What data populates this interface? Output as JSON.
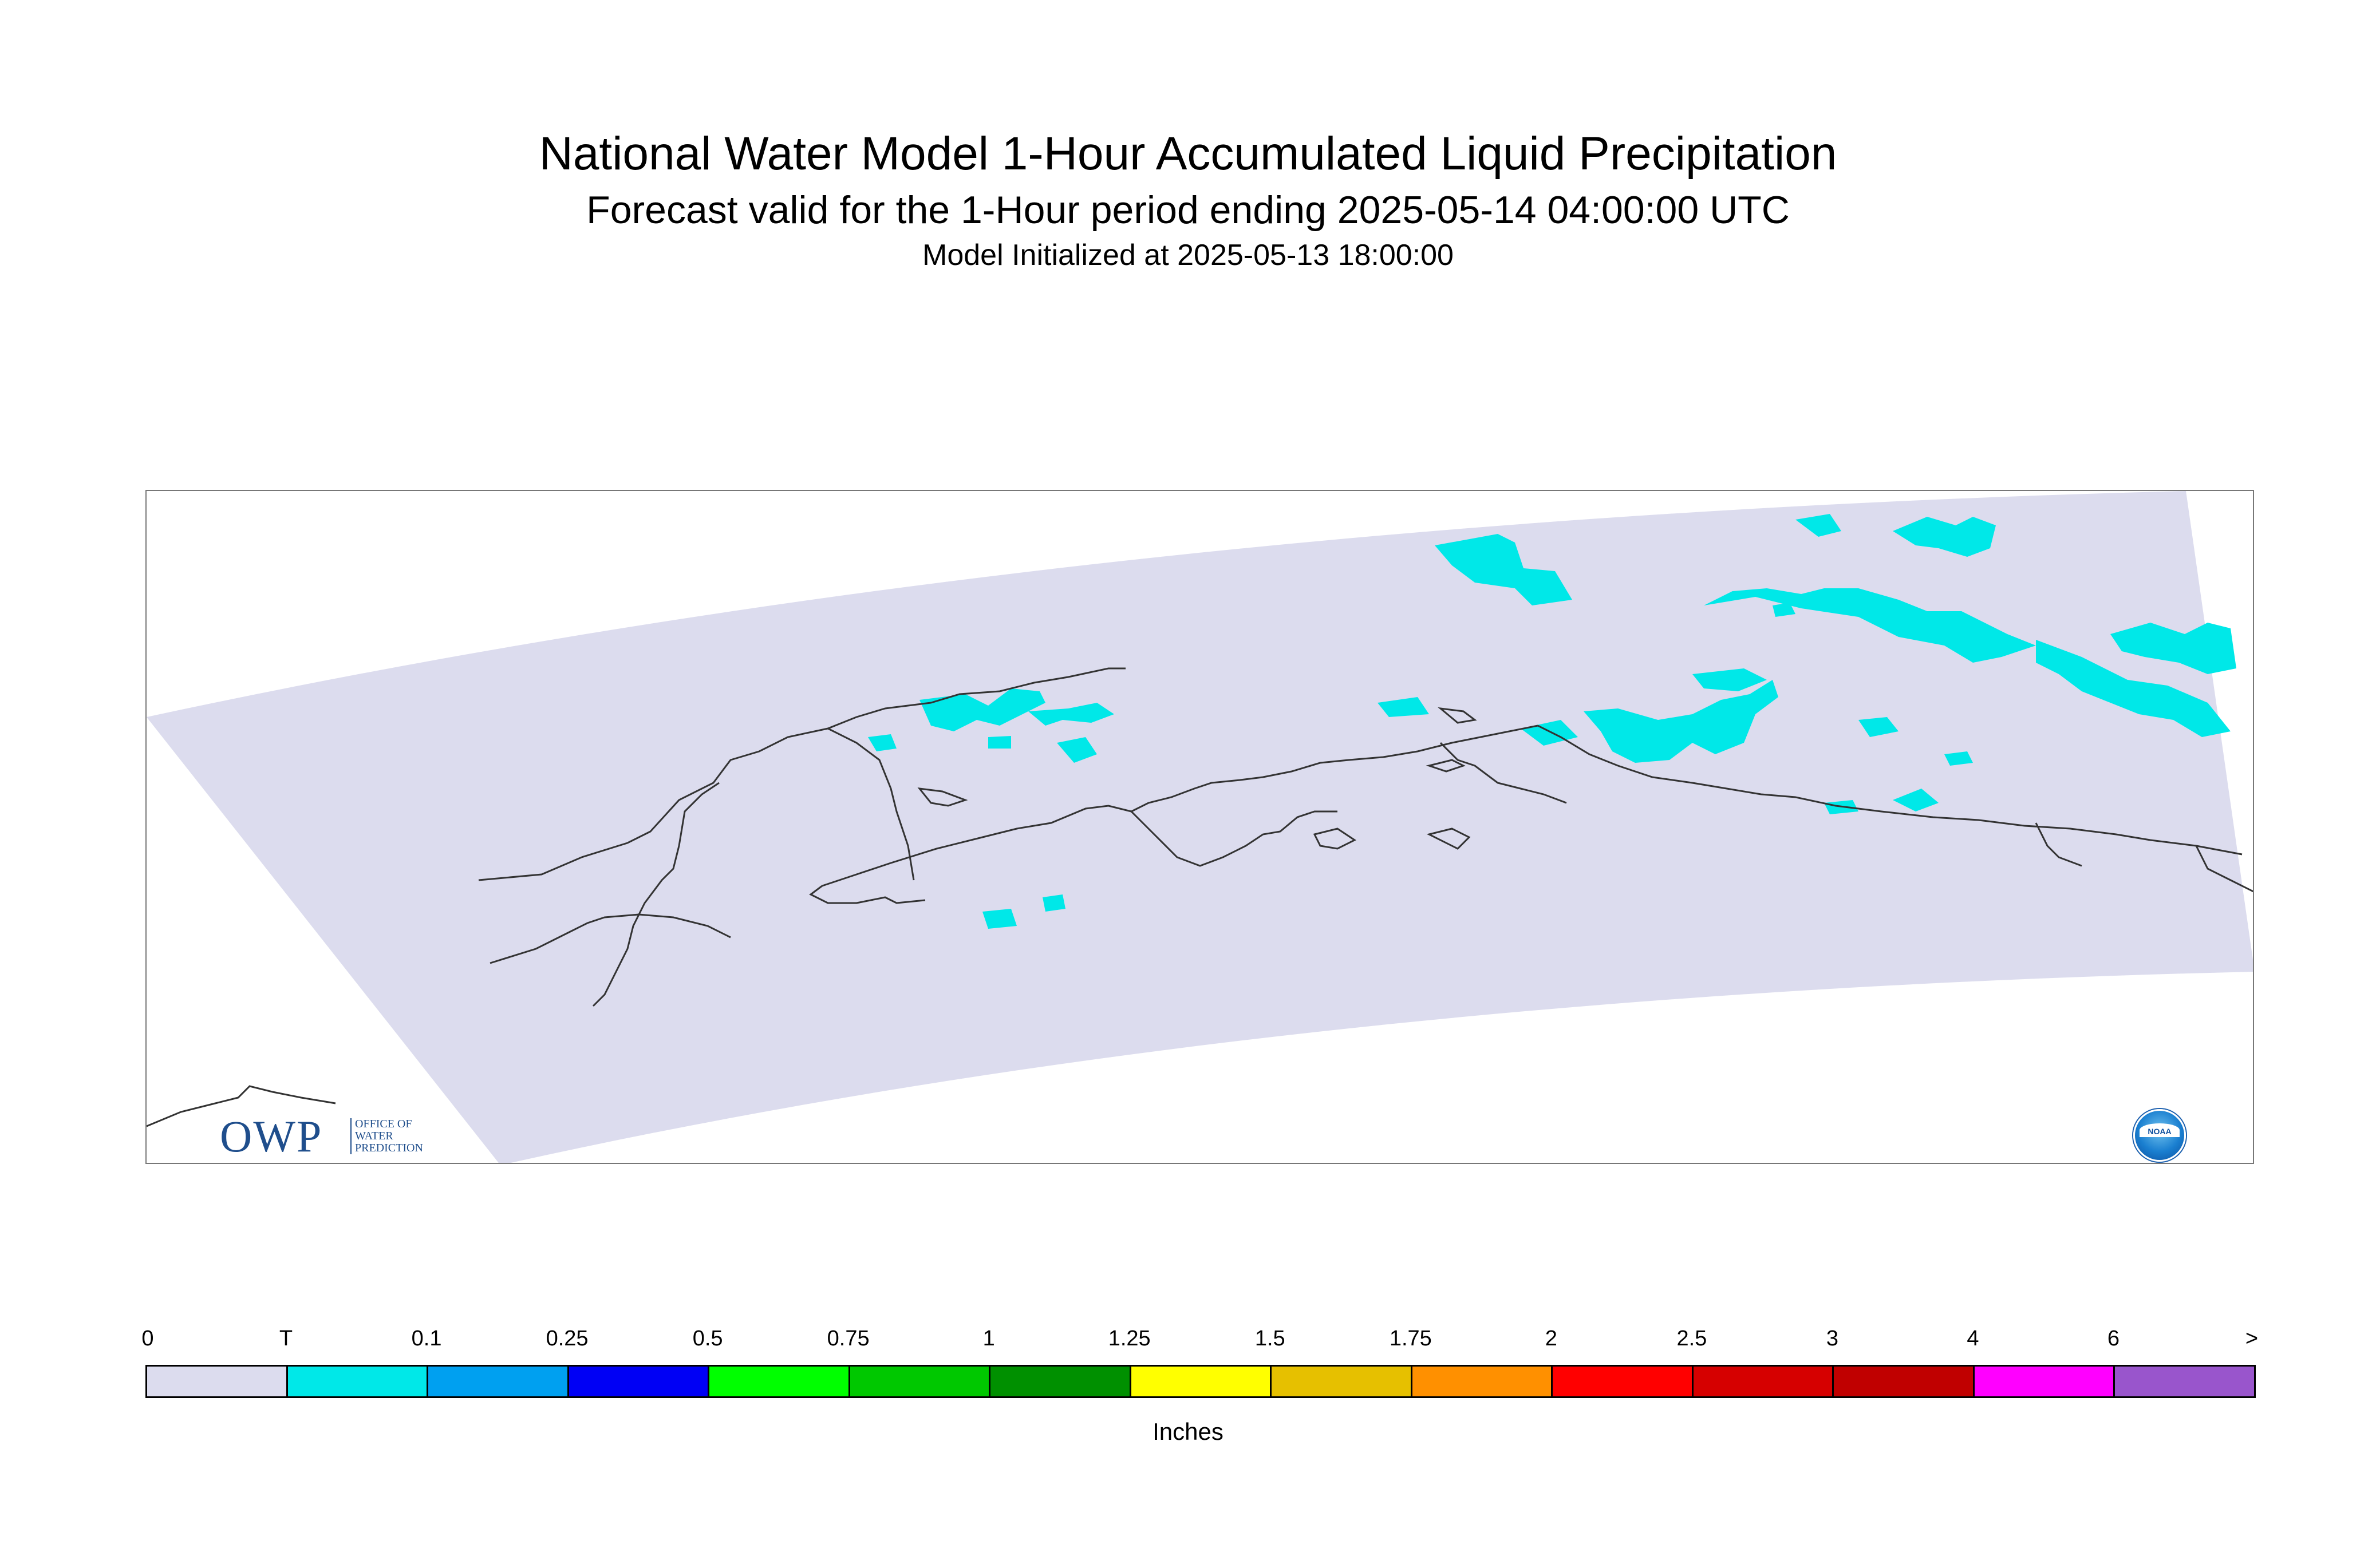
{
  "title": "National Water Model 1-Hour Accumulated Liquid Precipitation",
  "subtitle": "Forecast valid for the 1-Hour period ending 2025-05-14 04:00:00 UTC",
  "initialized": "Model Initialized at 2025-05-13 18:00:00",
  "logo_owp": {
    "mark": "OWP",
    "lines": [
      "OFFICE OF",
      "WATER",
      "PREDICTION"
    ]
  },
  "logo_noaa": {
    "text": "NOAA"
  },
  "legend": {
    "units": "Inches",
    "labels": [
      "0",
      "T",
      "0.1",
      "0.25",
      "0.5",
      "0.75",
      "1",
      "1.25",
      "1.5",
      "1.75",
      "2",
      "2.5",
      "3",
      "4",
      "6",
      ">"
    ],
    "colors": [
      "#dcdcee",
      "#00e8e8",
      "#00a0f0",
      "#0000f5",
      "#00ff00",
      "#00c800",
      "#009000",
      "#ffff00",
      "#e6c000",
      "#ff9000",
      "#ff0000",
      "#d60000",
      "#c00000",
      "#ff00ff",
      "#9955cc"
    ]
  },
  "map": {
    "domain_color": "#dcdcee",
    "precip_color": "#00e8e8",
    "coast_color": "#333333"
  }
}
